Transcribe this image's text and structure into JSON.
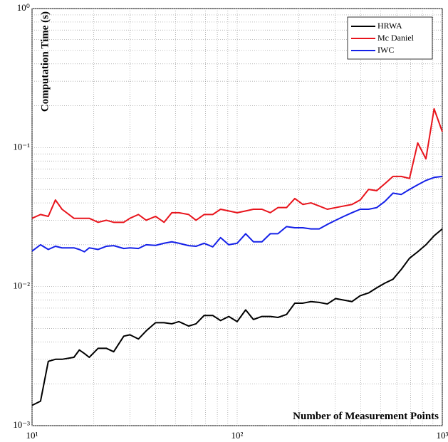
{
  "chart_data": {
    "type": "line",
    "xlabel": "Number of Measurement Points",
    "ylabel": "Computation Time (s)",
    "xscale": "log",
    "yscale": "log",
    "grid": true,
    "legend": "upper right",
    "xlim": [
      10,
      1000
    ],
    "ylim": [
      0.001,
      1
    ],
    "xticks": [
      {
        "value": 10,
        "label": "10¹"
      },
      {
        "value": 100,
        "label": "10²"
      },
      {
        "value": 1000,
        "label": "10³"
      }
    ],
    "yticks": [
      {
        "value": 0.001,
        "label": "10⁻³"
      },
      {
        "value": 0.01,
        "label": "10⁻²"
      },
      {
        "value": 0.1,
        "label": "10⁻¹"
      },
      {
        "value": 1,
        "label": "10⁰"
      }
    ],
    "x": [
      10,
      11,
      12,
      13,
      14,
      16,
      17,
      18,
      19,
      21,
      23,
      25,
      28,
      30,
      33,
      36,
      40,
      44,
      48,
      52,
      58,
      63,
      69,
      76,
      83,
      91,
      100,
      110,
      120,
      132,
      145,
      158,
      174,
      191,
      209,
      229,
      251,
      275,
      302,
      331,
      363,
      398,
      437,
      479,
      525,
      575,
      631,
      692,
      759,
      832,
      912,
      1000
    ],
    "series": [
      {
        "name": "HRWA",
        "color": "#000000",
        "values": [
          0.0014,
          0.0015,
          0.0029,
          0.003,
          0.003,
          0.0031,
          0.0035,
          0.0033,
          0.0031,
          0.0036,
          0.0036,
          0.0034,
          0.0044,
          0.0045,
          0.0042,
          0.0048,
          0.0055,
          0.0055,
          0.0054,
          0.0056,
          0.0052,
          0.0054,
          0.0062,
          0.0062,
          0.0057,
          0.0061,
          0.0056,
          0.0068,
          0.0058,
          0.0061,
          0.0061,
          0.006,
          0.0063,
          0.0076,
          0.0076,
          0.0078,
          0.0077,
          0.0075,
          0.0082,
          0.008,
          0.0078,
          0.0086,
          0.009,
          0.0098,
          0.0106,
          0.0113,
          0.0133,
          0.016,
          0.0178,
          0.02,
          0.0232,
          0.026
        ]
      },
      {
        "name": "Mc Daniel",
        "color": "#e8141c",
        "values": [
          0.031,
          0.033,
          0.032,
          0.042,
          0.036,
          0.031,
          0.031,
          0.031,
          0.031,
          0.029,
          0.03,
          0.029,
          0.029,
          0.031,
          0.033,
          0.03,
          0.032,
          0.029,
          0.034,
          0.034,
          0.033,
          0.03,
          0.033,
          0.033,
          0.036,
          0.035,
          0.034,
          0.035,
          0.036,
          0.036,
          0.034,
          0.037,
          0.037,
          0.043,
          0.039,
          0.04,
          0.038,
          0.036,
          0.037,
          0.038,
          0.039,
          0.042,
          0.05,
          0.049,
          0.055,
          0.062,
          0.062,
          0.06,
          0.108,
          0.083,
          0.19,
          0.13
        ]
      },
      {
        "name": "IWC",
        "color": "#1420e8",
        "values": [
          0.018,
          0.02,
          0.0185,
          0.0195,
          0.019,
          0.019,
          0.0185,
          0.0178,
          0.019,
          0.0185,
          0.0195,
          0.0197,
          0.0188,
          0.019,
          0.0188,
          0.02,
          0.0198,
          0.0205,
          0.021,
          0.0205,
          0.0197,
          0.0195,
          0.0205,
          0.0193,
          0.0225,
          0.02,
          0.0205,
          0.024,
          0.021,
          0.021,
          0.024,
          0.024,
          0.027,
          0.0265,
          0.0265,
          0.026,
          0.026,
          0.028,
          0.03,
          0.032,
          0.034,
          0.036,
          0.036,
          0.037,
          0.041,
          0.047,
          0.046,
          0.05,
          0.054,
          0.058,
          0.061,
          0.062
        ]
      }
    ]
  }
}
